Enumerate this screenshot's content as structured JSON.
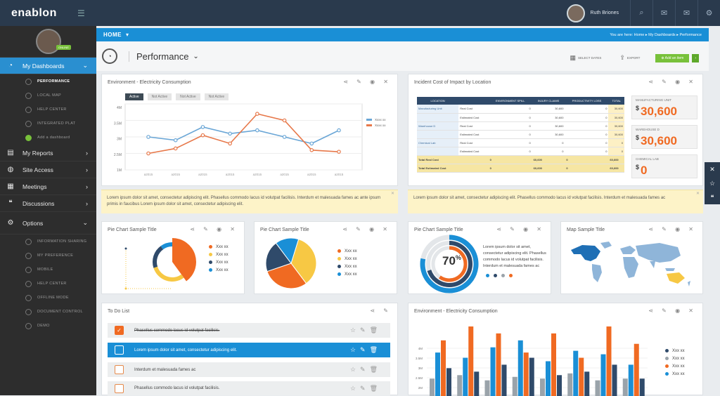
{
  "app": {
    "logo": "enablon",
    "user": "Ruth Briones"
  },
  "sidebar": {
    "online": "ONLINE",
    "main": [
      {
        "label": "My Dashboards",
        "icon": "dashboard-icon"
      },
      {
        "label": "My Reports",
        "icon": "reports-icon"
      },
      {
        "label": "Site Access",
        "icon": "globe-icon"
      },
      {
        "label": "Meetings",
        "icon": "calendar-icon"
      },
      {
        "label": "Discussions",
        "icon": "chat-icon"
      },
      {
        "label": "Options",
        "icon": "gear-icon"
      }
    ],
    "dash_items": [
      "PERFORMANCE",
      "LOCAL MAP",
      "HELP CENTER",
      "INTEGRATED PLAT",
      "Add a dashboard"
    ],
    "option_items": [
      "INFORMATION SHARING",
      "MY PREFERENCE",
      "MOBILE",
      "HELP CENTER",
      "OFFLINE MODE",
      "DOCUMENT CONTROL",
      "DEMO"
    ]
  },
  "breadcrumb": {
    "home": "HOME",
    "path": "You are here: Home  ▸  My Dashboards  ▸  Performance"
  },
  "page": {
    "title": "Performance",
    "select_dates": "SELECT DATES",
    "export": "EXPORT",
    "add_item": "Add an item"
  },
  "cards": {
    "electricity": "Environment - Electricity Consumption",
    "incident": "Incident Cost of Impact by Location",
    "pie1": "Pie Chart Sample Title",
    "pie2": "Pie Chart Sample Title",
    "pie3": "Pie Chart Sample Title",
    "map": "Map Sample Title",
    "todo": "To Do List",
    "electricity2": "Environment - Electricity Consumption"
  },
  "tabs": [
    "Active",
    "Not Active",
    "Not Active",
    "Not Active"
  ],
  "notes": {
    "left": "Lorem ipsum dolor sit amet, consectetur adipiscing elit. Phasellus commodo lacus id volutpat facilisis. Interdum et malesuada fames ac ante ipsum primis in faucibus Lorem ipsum dolor sit amet, consectetur adipiscing elit.",
    "right": "Lorem ipsum dolor sit amet, consectetur adipiscing elit. Phasellus commodo lacus id volutpat facilisis. Interdum et malesuada fames ac"
  },
  "table": {
    "headers": [
      "LOCATION",
      "",
      "ENVIRONMENT SPILL",
      "INJURY CLAIMS",
      "PRODUCTIVITY LOSS",
      "TOTAL"
    ],
    "rows": [
      [
        "Manufacturing Unit",
        "Real Cost",
        "0",
        "30,600",
        "0",
        "30,600"
      ],
      [
        "",
        "Estimated Cost",
        "0",
        "30,600",
        "0",
        "30,600"
      ],
      [
        "Warehouse D",
        "Real Cost",
        "0",
        "30,600",
        "0",
        "30,600"
      ],
      [
        "",
        "Estimated Cost",
        "0",
        "30,600",
        "0",
        "30,600"
      ],
      [
        "Chemical Lab",
        "Real Cost",
        "0",
        "0",
        "0",
        "0"
      ],
      [
        "",
        "Estimated Cost",
        "0",
        "0",
        "0",
        "0"
      ]
    ],
    "totals": [
      [
        "Total Real Cost",
        "",
        "0",
        "60,600",
        "0",
        "60,600"
      ],
      [
        "Total Estimated Cost",
        "",
        "0",
        "60,600",
        "0",
        "60,600"
      ]
    ]
  },
  "stats": [
    {
      "label": "MANUFACTURING UNIT",
      "currency": "$",
      "value": "30,600"
    },
    {
      "label": "WAREHOUSE D",
      "currency": "$",
      "value": "30,600"
    },
    {
      "label": "CHEMICAL LAB",
      "currency": "$",
      "value": "0"
    }
  ],
  "pie_legend": [
    "Xxx xx",
    "Xxx xx",
    "Xxx xx",
    "Xxx xx"
  ],
  "pie3_text": "Lorem ipsum dolor sit amet, consectetur adipiscing elit. Phasellus commodo lacus id volutpat facilisis. Interdum et malesuada fames ac",
  "pie3_percent": "70",
  "todo": [
    {
      "text": "Phasellus commodo lacus id volutpat facilisis.",
      "state": "done"
    },
    {
      "text": "Lorem ipsum dolor sit amet, consectetur adipiscing elit.",
      "state": "selected"
    },
    {
      "text": "Interdum et malesuada fames ac",
      "state": "open"
    },
    {
      "text": "Phasellus commodo lacus id volutpat facilisis.",
      "state": "open"
    }
  ],
  "colors": {
    "blue": "#1a8fd6",
    "orange": "#f06a22",
    "navy": "#2f4a6a",
    "green": "#78c13a",
    "yellow": "#f7c844",
    "grey": "#9aa3aa"
  },
  "chart_data": [
    {
      "type": "line",
      "ylim": [
        0,
        4
      ],
      "y_ticks": [
        "1M",
        "2.5M",
        "3M",
        "3.5M",
        "4M"
      ],
      "x": [
        "a2015",
        "a2015",
        "a2015",
        "a2015",
        "a2015",
        "a2015",
        "a2015",
        "a2015"
      ],
      "series": [
        {
          "name": "Xxxx xx",
          "color": "#6aa6d6",
          "values": [
            2.0,
            1.8,
            2.6,
            2.2,
            2.4,
            2.0,
            1.6,
            2.4
          ]
        },
        {
          "name": "Xxxx xx",
          "color": "#e7784a",
          "values": [
            1.0,
            1.3,
            2.1,
            1.6,
            3.4,
            3.0,
            1.2,
            1.1
          ]
        }
      ]
    },
    {
      "type": "pie",
      "values": [
        40,
        30,
        20,
        10
      ]
    },
    {
      "type": "pie",
      "values": [
        35,
        30,
        20,
        15
      ]
    },
    {
      "type": "pie",
      "values": [
        70,
        30
      ]
    },
    {
      "type": "bar",
      "y_ticks": [
        "4M",
        "3.5M",
        "3M",
        "2.5M",
        "2M",
        "1M"
      ],
      "legend": [
        "Xxx xx",
        "Xxx xx",
        "Xxx xx",
        "Xxx xx"
      ],
      "series": [
        {
          "color": "#9aa3aa",
          "values": [
            1,
            1.2,
            0.9,
            1.1,
            1.0,
            1.3,
            0.9,
            1.0
          ]
        },
        {
          "color": "#1a8fd6",
          "values": [
            2.5,
            2.2,
            2.8,
            3.2,
            2.0,
            2.6,
            2.4,
            1.8
          ]
        },
        {
          "color": "#f06a22",
          "values": [
            3.2,
            4.0,
            3.6,
            2.5,
            3.6,
            2.2,
            4.0,
            3.0
          ]
        },
        {
          "color": "#2f4a6a",
          "values": [
            1.6,
            1.4,
            1.8,
            2.2,
            1.2,
            1.4,
            1.8,
            1.0
          ]
        }
      ]
    }
  ]
}
